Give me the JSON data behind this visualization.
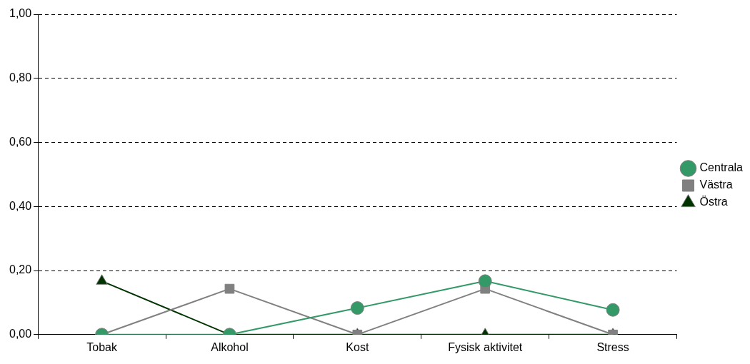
{
  "chart_data": {
    "type": "line",
    "categories": [
      "Tobak",
      "Alkohol",
      "Kost",
      "Fysisk aktivitet",
      "Stress"
    ],
    "series": [
      {
        "name": "Centrala",
        "color": "#339966",
        "marker": "circle",
        "values": [
          0,
          0,
          0.083,
          0.167,
          0.077
        ]
      },
      {
        "name": "Västra",
        "color": "#808080",
        "marker": "square",
        "values": [
          0,
          0.143,
          0,
          0.143,
          0
        ]
      },
      {
        "name": "Östra",
        "color": "#003300",
        "marker": "triangle",
        "values": [
          0.167,
          0,
          0,
          0,
          0
        ]
      }
    ],
    "ylim": [
      0,
      1
    ],
    "yticks": [
      {
        "value": 0,
        "label": "0,00"
      },
      {
        "value": 0.2,
        "label": "0,20"
      },
      {
        "value": 0.4,
        "label": "0,40"
      },
      {
        "value": 0.6,
        "label": "0,60"
      },
      {
        "value": 0.8,
        "label": "0,80"
      },
      {
        "value": 1,
        "label": "1,00"
      }
    ],
    "grid": "y",
    "line_style": "solid",
    "legend": "right"
  }
}
